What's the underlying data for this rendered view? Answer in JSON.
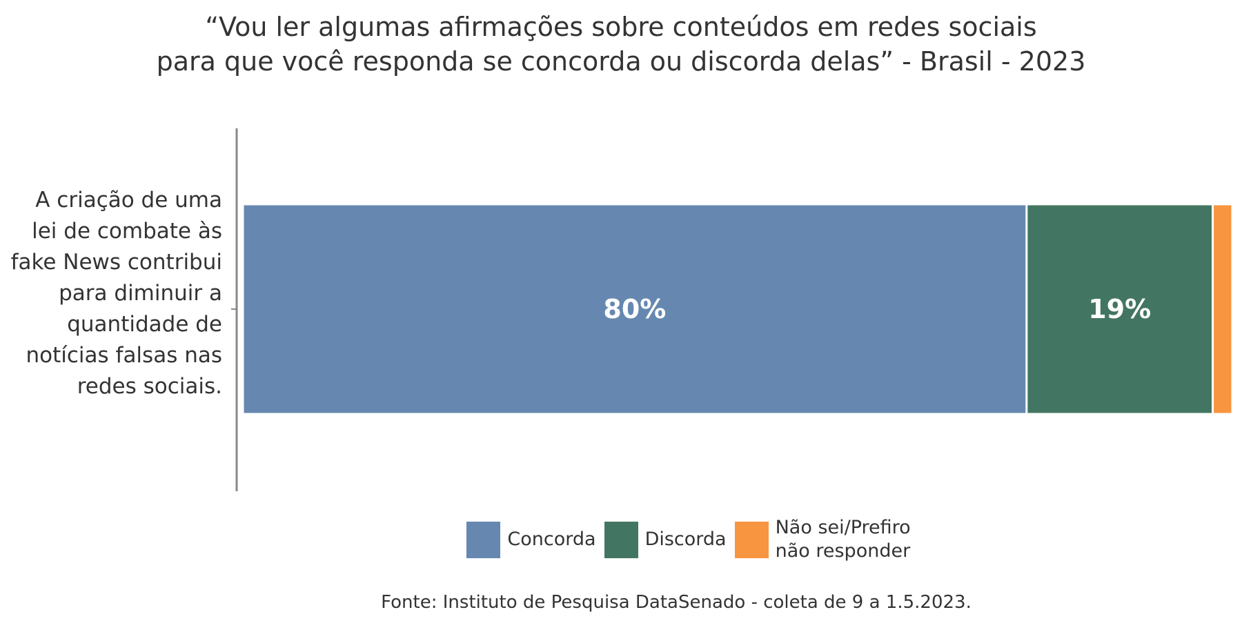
{
  "chart_data": {
    "type": "stacked-bar-horizontal",
    "title": "“Vou ler algumas afirmações sobre conteúdos em redes sociais\npara que você responda se concorda ou discorda delas” - Brasil - 2023",
    "categories": [
      "A criação de uma lei de combate às fake News contribui para diminuir a quantidade de notícias falsas nas redes sociais."
    ],
    "series": [
      {
        "name": "Concorda",
        "color": "#6688b0",
        "values": [
          80
        ],
        "value_labels": [
          "80%"
        ]
      },
      {
        "name": "Discorda",
        "color": "#437662",
        "values": [
          19
        ],
        "value_labels": [
          "19%"
        ]
      },
      {
        "name": "Não sei/Prefiro não responder",
        "color": "#f89540",
        "values": [
          2
        ],
        "value_labels": [
          null
        ]
      }
    ],
    "source": "Fonte: Instituto de Pesquisa DataSenado - coleta de 9 a 1.5.2023."
  }
}
